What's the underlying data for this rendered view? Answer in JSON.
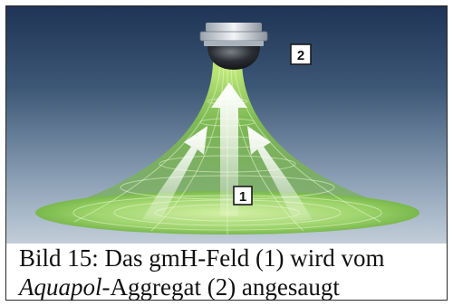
{
  "figure": {
    "callout_1": "1",
    "callout_2": "2",
    "caption_line1": "Bild 15: Das gmH-Feld (1) wird vom",
    "caption_line2_italic": "Aquapol",
    "caption_line2_rest": "-Aggregat (2) angesaugt"
  },
  "colors": {
    "background_top": "#23395d",
    "background_bottom": "#b6c4d4",
    "field_green": "#8fd65a",
    "arrow_white": "#ffffff"
  },
  "icons": [
    "aquapol-device-icon",
    "suction-arrow-icon"
  ]
}
